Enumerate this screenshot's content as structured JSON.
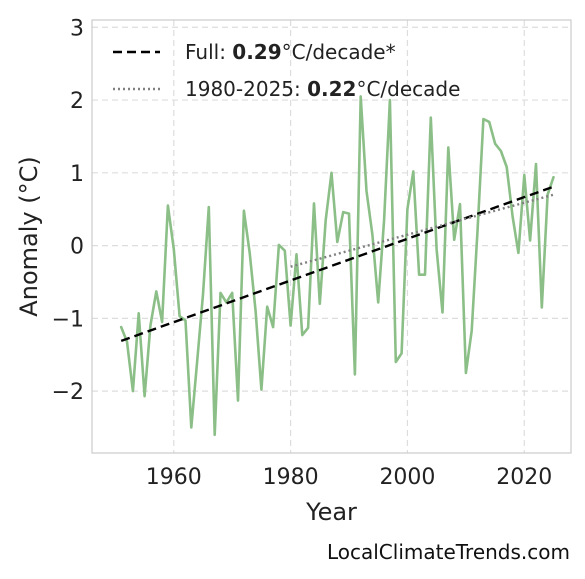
{
  "chart_data": {
    "type": "line",
    "xlabel": "Year",
    "ylabel": "Anomaly (°C)",
    "xlim": [
      1946,
      2028
    ],
    "ylim": [
      -2.85,
      3.1
    ],
    "xticks": [
      1960,
      1980,
      2000,
      2020
    ],
    "yticks": [
      -2,
      -1,
      0,
      1,
      2,
      3
    ],
    "grid": true,
    "legend_position": "top-left",
    "series": [
      {
        "name": "anomaly",
        "color": "#8bbf87",
        "style": "solid",
        "x": [
          1951,
          1952,
          1953,
          1954,
          1955,
          1956,
          1957,
          1958,
          1959,
          1960,
          1961,
          1962,
          1963,
          1964,
          1965,
          1966,
          1967,
          1968,
          1969,
          1970,
          1971,
          1972,
          1973,
          1974,
          1975,
          1976,
          1977,
          1978,
          1979,
          1980,
          1981,
          1982,
          1983,
          1984,
          1985,
          1986,
          1987,
          1988,
          1989,
          1990,
          1991,
          1992,
          1993,
          1994,
          1995,
          1996,
          1997,
          1998,
          1999,
          2000,
          2001,
          2002,
          2003,
          2004,
          2005,
          2006,
          2007,
          2008,
          2009,
          2010,
          2011,
          2012,
          2013,
          2014,
          2015,
          2016,
          2017,
          2018,
          2019,
          2020,
          2021,
          2022,
          2023,
          2024,
          2025
        ],
        "y": [
          -1.12,
          -1.32,
          -2.0,
          -0.93,
          -2.07,
          -1.1,
          -0.63,
          -1.05,
          0.55,
          -0.05,
          -0.97,
          -1.03,
          -2.5,
          -1.6,
          -0.67,
          0.53,
          -2.6,
          -0.65,
          -0.78,
          -0.65,
          -2.13,
          0.48,
          -0.1,
          -0.9,
          -1.98,
          -0.84,
          -1.12,
          0.01,
          -0.07,
          -1.1,
          -0.12,
          -1.23,
          -1.13,
          0.58,
          -0.8,
          0.35,
          1.0,
          0.05,
          0.46,
          0.44,
          -1.77,
          2.05,
          0.75,
          0.15,
          -0.78,
          0.35,
          2.0,
          -1.6,
          -1.48,
          0.5,
          1.02,
          -0.4,
          -0.4,
          1.76,
          -0.05,
          -0.92,
          1.35,
          0.08,
          0.57,
          -1.75,
          -1.17,
          0.2,
          1.74,
          1.7,
          1.4,
          1.3,
          1.08,
          0.4,
          -0.1,
          0.97,
          0.07,
          1.12,
          -0.85,
          0.7,
          0.94
        ]
      },
      {
        "name": "Full",
        "color": "#000000",
        "style": "dashed",
        "x": [
          1951,
          2025
        ],
        "y": [
          -1.31,
          0.81
        ]
      },
      {
        "name": "1980-2025",
        "color": "#808080",
        "style": "dotted",
        "x": [
          1980,
          2025
        ],
        "y": [
          -0.29,
          0.7
        ]
      }
    ],
    "legend": [
      {
        "prefix": "Full: ",
        "value": "0.29",
        "suffix": "°C/decade*",
        "style": "dashed",
        "color": "#000000"
      },
      {
        "prefix": "1980-2025: ",
        "value": "0.22",
        "suffix": "°C/decade",
        "style": "dotted",
        "color": "#808080"
      }
    ]
  },
  "credit": "LocalClimateTrends.com"
}
